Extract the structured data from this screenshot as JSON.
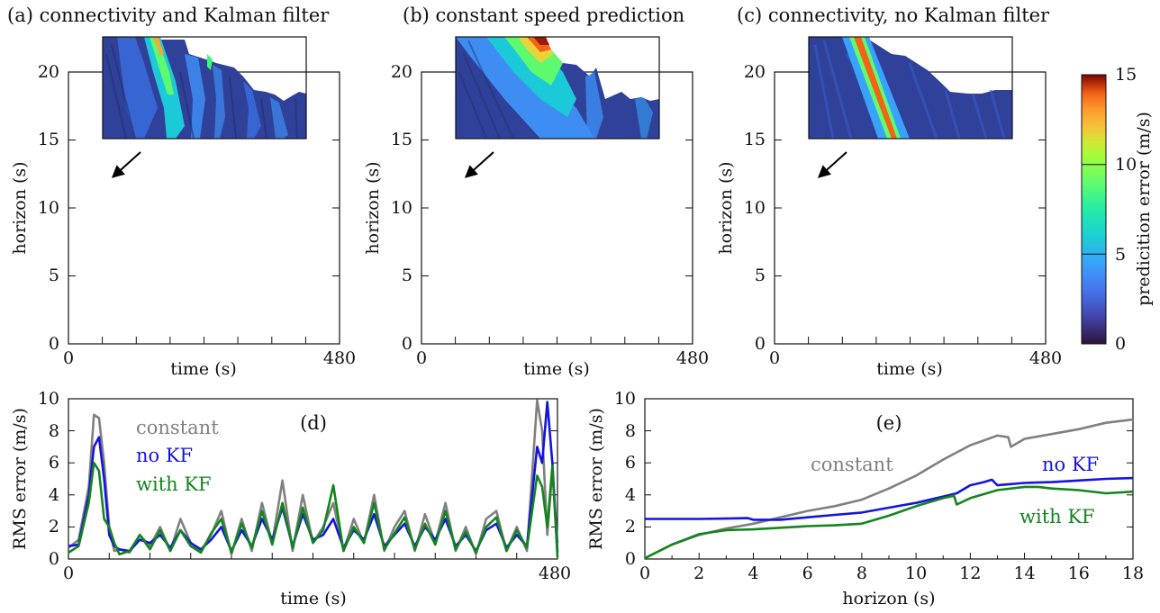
{
  "chart_data": [
    {
      "type": "heatmap",
      "title": "(a) connectivity and Kalman filter",
      "xlabel": "time (s)",
      "ylabel": "horizon (s)",
      "xlim": [
        0,
        480
      ],
      "ylim": [
        0,
        20
      ],
      "xticks": [
        "0",
        "480"
      ],
      "yticks": [
        "0",
        "5",
        "10",
        "15",
        "20"
      ],
      "inset_shows": "prediction error map, band near t≈70–110 s and diffuse streaks",
      "colorscale": "prediction error (m/s)"
    },
    {
      "type": "heatmap",
      "title": "(b) constant speed prediction",
      "xlabel": "time (s)",
      "ylabel": "horizon (s)",
      "xlim": [
        0,
        480
      ],
      "ylim": [
        0,
        20
      ],
      "xticks": [
        "0",
        "480"
      ],
      "yticks": [
        "0",
        "5",
        "10",
        "15",
        "20"
      ],
      "colorscale": "prediction error (m/s)"
    },
    {
      "type": "heatmap",
      "title": "(c) connectivity, no Kalman filter",
      "xlabel": "time (s)",
      "ylabel": "horizon (s)",
      "xlim": [
        0,
        480
      ],
      "ylim": [
        0,
        20
      ],
      "xticks": [
        "0",
        "480"
      ],
      "yticks": [
        "0",
        "5",
        "10",
        "15",
        "20"
      ],
      "colorscale": "prediction error (m/s)"
    },
    {
      "type": "line",
      "title": "(d)",
      "xlabel": "time (s)",
      "ylabel": "RMS error (m/s)",
      "xlim": [
        0,
        480
      ],
      "ylim": [
        0,
        10
      ],
      "xticks": [
        "0",
        "480"
      ],
      "yticks": [
        "0",
        "2",
        "4",
        "6",
        "8",
        "10"
      ],
      "series": [
        {
          "name": "constant",
          "color": "#808080",
          "x": [
            0,
            10,
            20,
            25,
            30,
            35,
            40,
            45,
            50,
            60,
            70,
            80,
            90,
            100,
            110,
            120,
            130,
            140,
            150,
            160,
            170,
            180,
            190,
            200,
            210,
            220,
            230,
            240,
            250,
            260,
            270,
            280,
            290,
            300,
            310,
            320,
            330,
            340,
            350,
            360,
            370,
            380,
            390,
            400,
            410,
            420,
            430,
            440,
            450,
            460,
            465,
            470,
            475,
            480
          ],
          "y": [
            0.7,
            1.2,
            4.5,
            9.0,
            8.8,
            6.0,
            2.0,
            0.5,
            0.6,
            0.4,
            1.5,
            0.8,
            2.0,
            0.5,
            2.5,
            1.0,
            0.5,
            1.5,
            3.0,
            0.3,
            2.5,
            0.5,
            3.5,
            1.0,
            4.9,
            0.5,
            4.0,
            1.0,
            2.0,
            3.5,
            0.5,
            2.5,
            1.0,
            4.0,
            0.5,
            2.0,
            3.0,
            0.5,
            2.8,
            1.0,
            3.5,
            0.5,
            2.0,
            0.3,
            2.5,
            3.0,
            0.5,
            2.0,
            0.5,
            9.9,
            8.0,
            1.5,
            5.5,
            1.0
          ]
        },
        {
          "name": "no KF",
          "color": "#1414e0",
          "x": [
            0,
            10,
            20,
            25,
            30,
            35,
            40,
            45,
            50,
            60,
            70,
            80,
            90,
            100,
            110,
            120,
            130,
            140,
            150,
            160,
            170,
            180,
            190,
            200,
            210,
            220,
            230,
            240,
            250,
            260,
            270,
            280,
            290,
            300,
            310,
            320,
            330,
            340,
            350,
            360,
            370,
            380,
            390,
            400,
            410,
            420,
            430,
            440,
            450,
            460,
            465,
            470,
            475,
            480
          ],
          "y": [
            0.8,
            0.9,
            4.0,
            7.0,
            7.6,
            5.0,
            1.5,
            0.8,
            0.6,
            0.5,
            1.2,
            1.0,
            1.5,
            0.7,
            1.8,
            1.0,
            0.6,
            1.2,
            2.0,
            0.5,
            1.8,
            0.8,
            2.5,
            1.2,
            3.2,
            0.8,
            2.8,
            1.2,
            1.5,
            2.5,
            0.7,
            1.8,
            1.2,
            2.8,
            0.8,
            1.5,
            2.2,
            0.8,
            2.0,
            1.2,
            2.5,
            0.8,
            1.5,
            0.5,
            1.8,
            2.2,
            0.7,
            1.5,
            0.8,
            7.0,
            6.0,
            9.8,
            6.0,
            0.4
          ]
        },
        {
          "name": "with KF",
          "color": "#13851d",
          "x": [
            0,
            10,
            20,
            25,
            30,
            35,
            40,
            45,
            50,
            60,
            70,
            80,
            90,
            100,
            110,
            120,
            130,
            140,
            150,
            160,
            170,
            180,
            190,
            200,
            210,
            220,
            230,
            240,
            250,
            260,
            270,
            280,
            290,
            300,
            310,
            320,
            330,
            340,
            350,
            360,
            370,
            380,
            390,
            400,
            410,
            420,
            430,
            440,
            450,
            460,
            465,
            470,
            475,
            480
          ],
          "y": [
            0.4,
            0.8,
            3.5,
            6.0,
            5.5,
            2.5,
            2.0,
            1.0,
            0.3,
            0.5,
            1.5,
            0.6,
            1.8,
            0.5,
            1.8,
            0.8,
            0.4,
            1.6,
            2.5,
            0.4,
            2.2,
            0.7,
            3.0,
            0.9,
            3.5,
            0.7,
            3.2,
            1.0,
            1.8,
            4.6,
            0.5,
            2.0,
            1.0,
            3.5,
            0.6,
            1.6,
            2.6,
            0.6,
            2.2,
            0.9,
            3.0,
            0.6,
            1.7,
            0.4,
            2.0,
            2.6,
            0.5,
            1.8,
            0.7,
            5.2,
            4.5,
            2.0,
            5.8,
            0.1
          ]
        }
      ],
      "legend": "top-left"
    },
    {
      "type": "line",
      "title": "(e)",
      "xlabel": "horizon (s)",
      "ylabel": "RMS error (m/s)",
      "xlim": [
        0,
        18
      ],
      "ylim": [
        0,
        10
      ],
      "xticks": [
        "0",
        "2",
        "4",
        "6",
        "8",
        "10",
        "12",
        "14",
        "16",
        "18"
      ],
      "yticks": [
        "0",
        "2",
        "4",
        "6",
        "8",
        "10"
      ],
      "series": [
        {
          "name": "constant",
          "color": "#808080",
          "x": [
            0,
            1,
            2,
            3,
            4,
            5,
            6,
            7,
            8,
            9,
            10,
            11,
            12,
            12.5,
            13,
            13.4,
            13.5,
            14,
            15,
            16,
            17,
            18
          ],
          "y": [
            0.05,
            0.9,
            1.5,
            1.9,
            2.2,
            2.6,
            3.0,
            3.3,
            3.7,
            4.4,
            5.2,
            6.2,
            7.1,
            7.4,
            7.7,
            7.6,
            7.0,
            7.5,
            7.8,
            8.1,
            8.5,
            8.7
          ]
        },
        {
          "name": "no KF",
          "color": "#1414e0",
          "x": [
            0,
            1,
            2,
            3,
            3.8,
            4,
            5,
            6,
            7,
            8,
            9,
            10,
            11,
            11.5,
            12,
            12.5,
            12.8,
            13,
            14,
            15,
            16,
            17,
            18
          ],
          "y": [
            2.5,
            2.5,
            2.5,
            2.52,
            2.55,
            2.45,
            2.45,
            2.6,
            2.75,
            2.9,
            3.2,
            3.5,
            3.9,
            4.1,
            4.6,
            4.8,
            4.95,
            4.6,
            4.75,
            4.8,
            4.9,
            5.0,
            5.05
          ]
        },
        {
          "name": "with KF",
          "color": "#13851d",
          "x": [
            0,
            1,
            2,
            3,
            4,
            5,
            6,
            7,
            8,
            9,
            10,
            11,
            11.4,
            11.5,
            12,
            13,
            14,
            14.5,
            15,
            16,
            17,
            18
          ],
          "y": [
            0.05,
            0.9,
            1.55,
            1.8,
            1.85,
            1.95,
            2.05,
            2.1,
            2.2,
            2.7,
            3.3,
            3.8,
            3.95,
            3.4,
            3.8,
            4.3,
            4.5,
            4.5,
            4.4,
            4.3,
            4.1,
            4.2
          ]
        }
      ],
      "legend": "inline"
    }
  ],
  "colorbar": {
    "label": "predicition error (m/s)",
    "ticks": [
      "0",
      "5",
      "10",
      "15"
    ],
    "range": [
      0,
      15
    ]
  },
  "panel_d_labels": {
    "constant": "constant",
    "nokf": "no KF",
    "withkf": "with KF"
  },
  "panel_e_labels": {
    "constant": "constant",
    "nokf": "no KF",
    "withkf": "with KF"
  },
  "colors": {
    "axis": "#111111",
    "arrow": "#000000"
  }
}
